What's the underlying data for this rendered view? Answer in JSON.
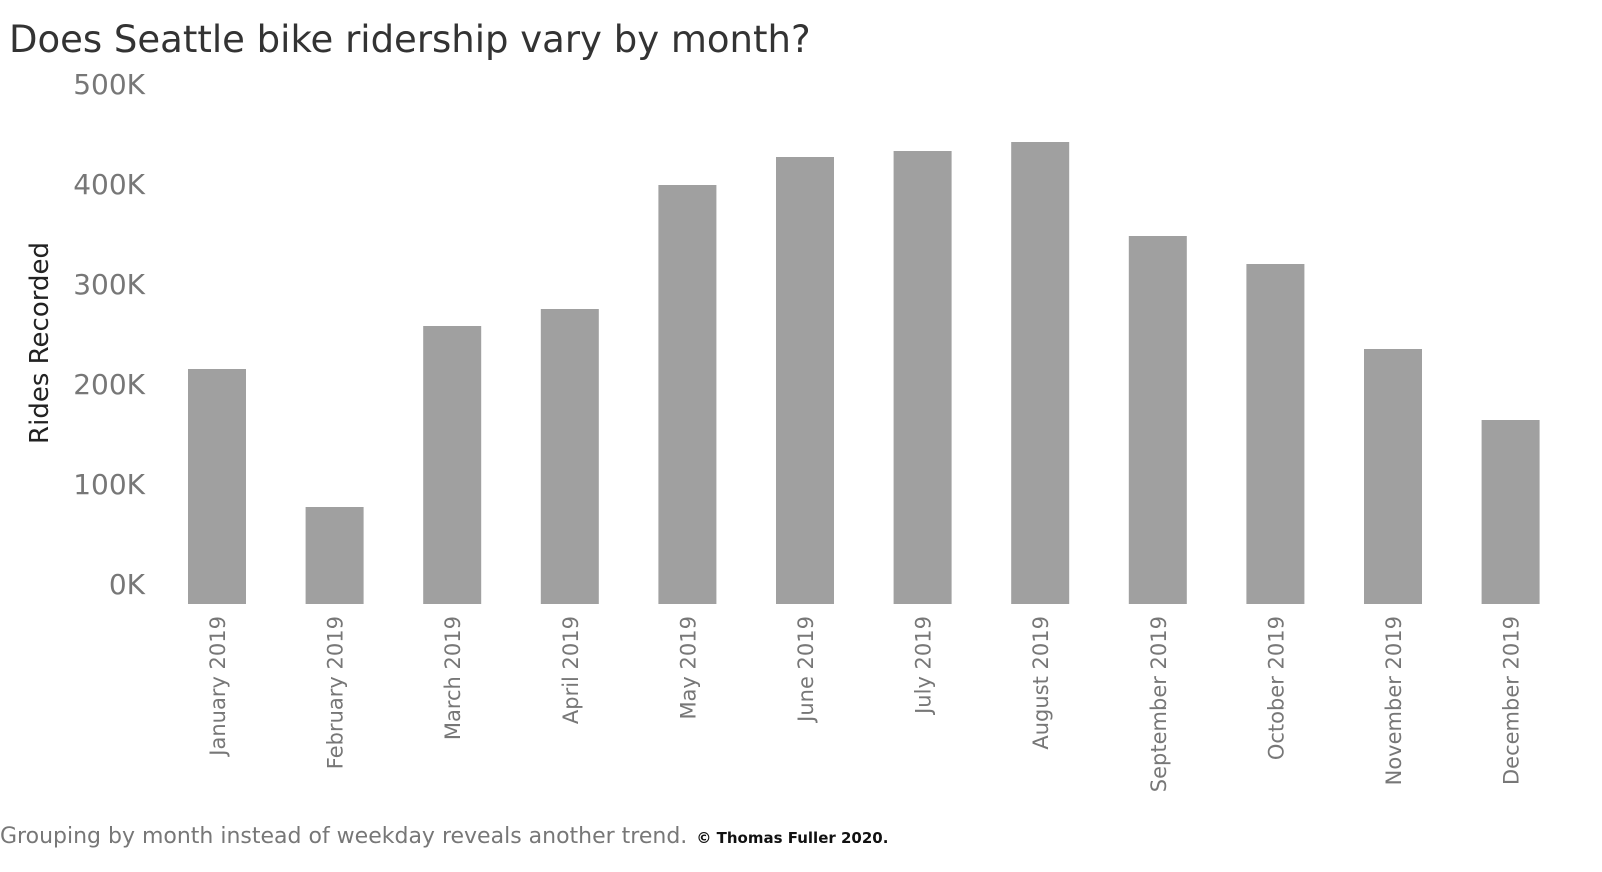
{
  "title": "Does Seattle bike ridership vary by month?",
  "footer": {
    "caption": "Grouping by month instead of weekday reveals another trend.",
    "copyright": "© Thomas Fuller 2020."
  },
  "colors": {
    "bar": "#a0a0a0",
    "tick_text": "#777777",
    "axis_label": "#222222"
  },
  "chart_data": {
    "type": "bar",
    "ylabel": "Rides Recorded",
    "ylim": [
      0,
      500000
    ],
    "yticks": [
      {
        "value": 0,
        "label": "0K"
      },
      {
        "value": 100000,
        "label": "100K"
      },
      {
        "value": 200000,
        "label": "200K"
      },
      {
        "value": 300000,
        "label": "300K"
      },
      {
        "value": 400000,
        "label": "400K"
      },
      {
        "value": 500000,
        "label": "500K"
      }
    ],
    "grid": false,
    "categories": [
      "January 2019",
      "February 2019",
      "March 2019",
      "April 2019",
      "May 2019",
      "June 2019",
      "July 2019",
      "August 2019",
      "September 2019",
      "October 2019",
      "November 2019",
      "December 2019"
    ],
    "values": [
      235000,
      97000,
      278000,
      295000,
      419000,
      447000,
      453000,
      462000,
      368000,
      340000,
      255000,
      184000
    ]
  }
}
